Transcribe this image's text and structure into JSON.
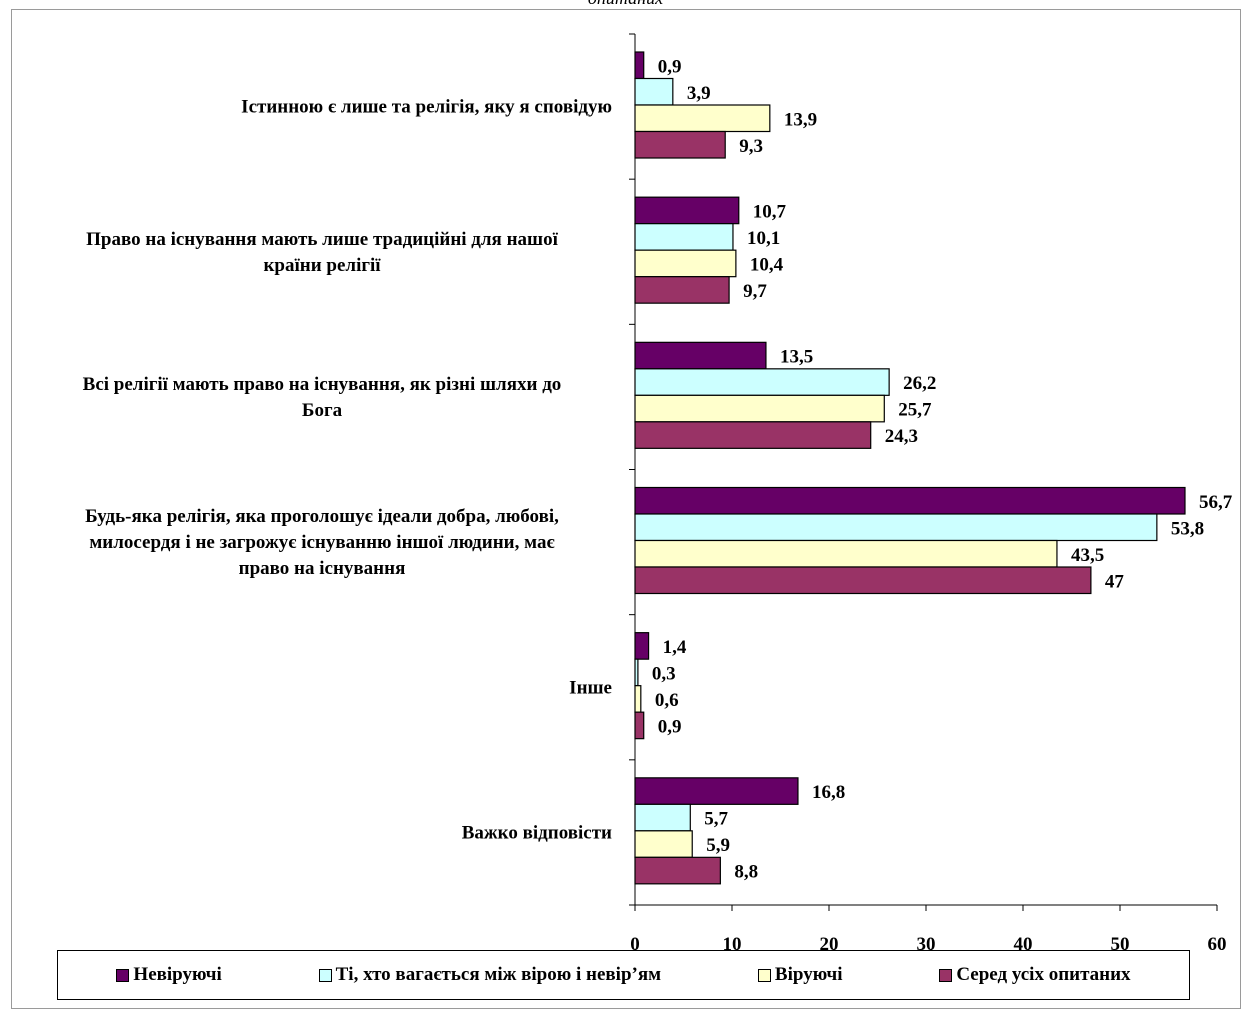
{
  "caption": "опитаних",
  "chart_data": {
    "type": "bar",
    "orientation": "horizontal",
    "categories": [
      [
        "Істинною є лише та релігія, яку я сповідую"
      ],
      [
        "Право на існування мають лише традиційні для нашої",
        "країни релігії"
      ],
      [
        "Всі релігії мають право на існування, як різні шляхи до",
        "Бога"
      ],
      [
        "Будь-яка релігія, яка проголошує ідеали добра, любові,",
        "милосердя і не загрожує існуванню іншої людини, має",
        "право на існування"
      ],
      [
        "Інше"
      ],
      [
        "Важко відповісти"
      ]
    ],
    "series": [
      {
        "name": "Невіруючі",
        "color": "#660066",
        "values": [
          0.9,
          10.7,
          13.5,
          56.7,
          1.4,
          16.8
        ],
        "labels": [
          "0,9",
          "10,7",
          "13,5",
          "56,7",
          "1,4",
          "16,8"
        ]
      },
      {
        "name": "Ті, хто вагається між вірою і невір’ям",
        "color": "#ccffff",
        "values": [
          3.9,
          10.1,
          26.2,
          53.8,
          0.3,
          5.7
        ],
        "labels": [
          "3,9",
          "10,1",
          "26,2",
          "53,8",
          "0,3",
          "5,7"
        ]
      },
      {
        "name": "Віруючі",
        "color": "#ffffcc",
        "values": [
          13.9,
          10.4,
          25.7,
          43.5,
          0.6,
          5.9
        ],
        "labels": [
          "13,9",
          "10,4",
          "25,7",
          "43,5",
          "0,6",
          "5,9"
        ]
      },
      {
        "name": "Серед усіх опитаних",
        "color": "#993366",
        "values": [
          9.3,
          9.7,
          24.3,
          47,
          0.9,
          8.8
        ],
        "labels": [
          "9,3",
          "9,7",
          "24,3",
          "47",
          "0,9",
          "8,8"
        ]
      }
    ],
    "xlim": [
      0,
      60
    ],
    "xticks": [
      0,
      10,
      20,
      30,
      40,
      50,
      60
    ],
    "xlabel": "",
    "ylabel": "",
    "legend_position": "bottom",
    "grid": false
  }
}
